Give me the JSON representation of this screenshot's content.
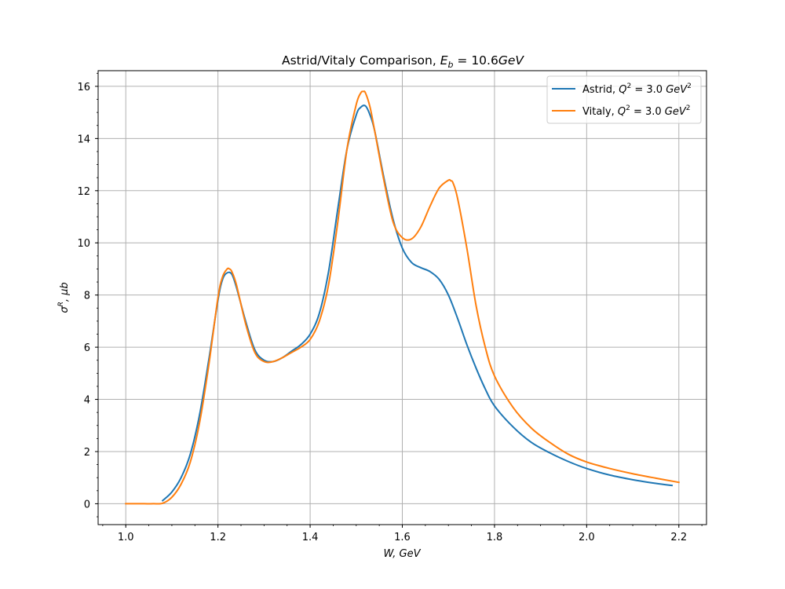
{
  "chart_data": {
    "type": "line",
    "title": "Astrid/Vitaly Comparison, E_b = 10.6GeV",
    "title_parts": {
      "prefix": "Astrid/Vitaly Comparison, ",
      "sym": "E",
      "sub": "b",
      "suffix": " = 10.6",
      "unit": "GeV"
    },
    "xlabel": "W, GeV",
    "xlabel_parts": {
      "a": "W",
      "b": ", GeV"
    },
    "ylabel": "σ^R, μb",
    "ylabel_parts": {
      "sym": "σ",
      "sup": "R",
      "rest": ", μb"
    },
    "xlim": [
      0.94,
      2.26
    ],
    "ylim": [
      -0.8,
      16.6
    ],
    "x_ticks": [
      1.0,
      1.2,
      1.4,
      1.6,
      1.8,
      2.0,
      2.2
    ],
    "x_tick_labels": [
      "1.0",
      "1.2",
      "1.4",
      "1.6",
      "1.8",
      "2.0",
      "2.2"
    ],
    "y_ticks": [
      0,
      2,
      4,
      6,
      8,
      10,
      12,
      14,
      16
    ],
    "y_tick_labels": [
      "0",
      "2",
      "4",
      "6",
      "8",
      "10",
      "12",
      "14",
      "16"
    ],
    "x_minor_step": 0.05,
    "y_minor_step": 0.5,
    "grid": true,
    "legend_position": "top-right",
    "series": [
      {
        "name": "Astrid, Q^2 = 3.0 GeV^2",
        "legend_parts": {
          "prefix": "Astrid, ",
          "sym": "Q",
          "sup1": "2",
          "mid": " = 3.0 ",
          "unit": "GeV",
          "sup2": "2"
        },
        "color": "#1f77b4",
        "x": [
          1.08,
          1.1,
          1.12,
          1.14,
          1.16,
          1.18,
          1.2,
          1.21,
          1.22,
          1.23,
          1.24,
          1.26,
          1.28,
          1.3,
          1.32,
          1.34,
          1.36,
          1.38,
          1.4,
          1.42,
          1.44,
          1.46,
          1.48,
          1.5,
          1.51,
          1.52,
          1.53,
          1.54,
          1.56,
          1.58,
          1.6,
          1.62,
          1.64,
          1.66,
          1.68,
          1.7,
          1.72,
          1.74,
          1.76,
          1.78,
          1.8,
          1.84,
          1.88,
          1.92,
          1.96,
          2.0,
          2.05,
          2.1,
          2.15,
          2.185
        ],
        "y": [
          0.12,
          0.45,
          1.0,
          1.9,
          3.4,
          5.5,
          7.8,
          8.6,
          8.85,
          8.8,
          8.3,
          7.0,
          5.9,
          5.5,
          5.45,
          5.6,
          5.85,
          6.1,
          6.5,
          7.3,
          8.9,
          11.3,
          13.6,
          14.9,
          15.2,
          15.25,
          14.9,
          14.3,
          12.5,
          10.9,
          9.8,
          9.25,
          9.05,
          8.9,
          8.6,
          8.0,
          7.1,
          6.1,
          5.2,
          4.4,
          3.75,
          2.95,
          2.35,
          1.95,
          1.62,
          1.35,
          1.1,
          0.92,
          0.78,
          0.7
        ]
      },
      {
        "name": "Vitaly, Q^2 = 3.0 GeV^2",
        "legend_parts": {
          "prefix": "Vitaly, ",
          "sym": "Q",
          "sup1": "2",
          "mid": " = 3.0 ",
          "unit": "GeV",
          "sup2": "2"
        },
        "color": "#ff7f0e",
        "x": [
          1.0,
          1.02,
          1.04,
          1.06,
          1.08,
          1.1,
          1.12,
          1.14,
          1.16,
          1.18,
          1.2,
          1.21,
          1.22,
          1.225,
          1.23,
          1.24,
          1.26,
          1.28,
          1.3,
          1.32,
          1.34,
          1.36,
          1.38,
          1.4,
          1.42,
          1.44,
          1.46,
          1.48,
          1.5,
          1.51,
          1.515,
          1.52,
          1.53,
          1.54,
          1.56,
          1.58,
          1.6,
          1.62,
          1.64,
          1.66,
          1.68,
          1.7,
          1.705,
          1.71,
          1.72,
          1.74,
          1.76,
          1.78,
          1.8,
          1.84,
          1.88,
          1.92,
          1.96,
          2.0,
          2.05,
          2.1,
          2.15,
          2.2
        ],
        "y": [
          0.0,
          0.0,
          0.0,
          0.0,
          0.02,
          0.25,
          0.75,
          1.6,
          3.1,
          5.3,
          7.9,
          8.7,
          9.0,
          9.0,
          8.9,
          8.4,
          6.9,
          5.8,
          5.45,
          5.45,
          5.6,
          5.8,
          6.0,
          6.3,
          7.0,
          8.4,
          10.8,
          13.6,
          15.3,
          15.75,
          15.8,
          15.75,
          15.2,
          14.3,
          12.4,
          10.8,
          10.2,
          10.15,
          10.6,
          11.4,
          12.1,
          12.4,
          12.38,
          12.3,
          11.7,
          9.8,
          7.6,
          6.0,
          4.9,
          3.7,
          2.9,
          2.35,
          1.9,
          1.6,
          1.35,
          1.15,
          0.98,
          0.82
        ]
      }
    ]
  }
}
